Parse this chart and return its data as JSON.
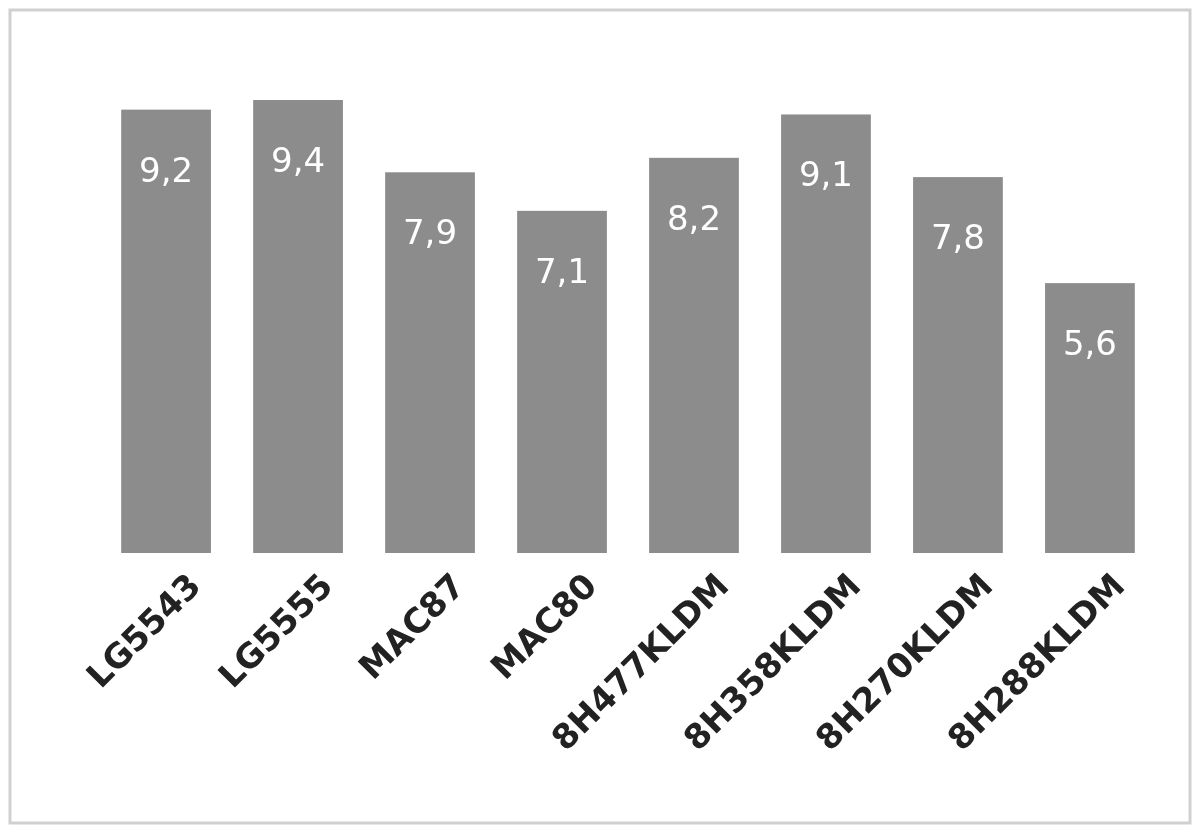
{
  "chart_data": {
    "type": "bar",
    "categories": [
      "LG5543",
      "LG5555",
      "MAC87",
      "MAC80",
      "8H477KLDM",
      "8H358KLDM",
      "8H270KLDM",
      "8H288KLDM"
    ],
    "values": [
      9.2,
      9.4,
      7.9,
      7.1,
      8.2,
      9.1,
      7.8,
      5.6
    ],
    "value_labels": [
      "9,2",
      "9,4",
      "7,9",
      "7,1",
      "8,2",
      "9,1",
      "7,8",
      "5,6"
    ],
    "color": "#8c8c8c"
  }
}
